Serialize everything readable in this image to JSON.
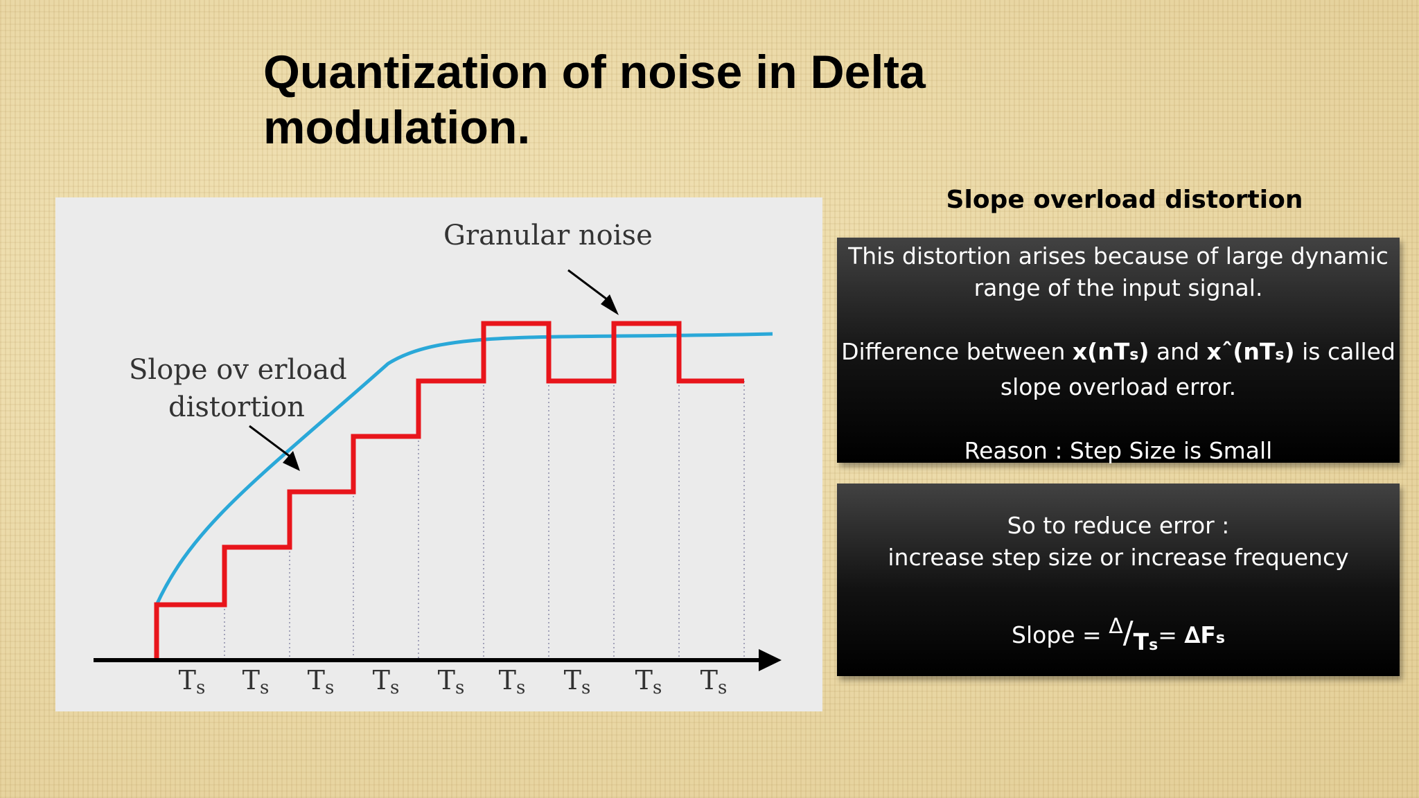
{
  "title": "Quantization of noise in Delta modulation.",
  "figure": {
    "label_granular": "Granular noise",
    "label_slope_1": "Slope ov erload",
    "label_slope_2": "distortion",
    "ts_labels": [
      {
        "main": "T",
        "sub": "s"
      },
      {
        "main": "T",
        "sub": "s"
      },
      {
        "main": "T",
        "sub": "s"
      },
      {
        "main": "T",
        "sub": "s"
      },
      {
        "main": "T",
        "sub": "s"
      },
      {
        "main": "T",
        "sub": "s"
      },
      {
        "main": "T",
        "sub": "s"
      },
      {
        "main": "T",
        "sub": "s"
      },
      {
        "main": "T",
        "sub": "s"
      }
    ],
    "colors": {
      "staircase": "#e8151b",
      "signal": "#2aa8d8",
      "axis": "#000000",
      "grid": "#8a8aa8"
    }
  },
  "section": {
    "heading": "Slope overload distortion",
    "box1": {
      "line1": "This distortion arises because of large dynamic range of the input signal.",
      "diff_prefix": "Difference between ",
      "x_main": "x(nT",
      "x_sub": "s",
      "x_close": ")",
      "and": " and ",
      "xhat_main": "xˆ(nT",
      "xhat_sub": "s",
      "xhat_close": ")",
      "diff_suffix": " is called slope overload error.",
      "reason": "Reason : Step Size is Small"
    },
    "box2": {
      "line1": "So to reduce error :",
      "line2": "increase step size or increase frequency",
      "slope_prefix": "Slope = ",
      "delta": "Δ",
      "slash": "/",
      "ts_main": "T",
      "ts_sub": "s",
      "equals": "= ",
      "df_main": "∆F",
      "df_sub": "s"
    }
  }
}
